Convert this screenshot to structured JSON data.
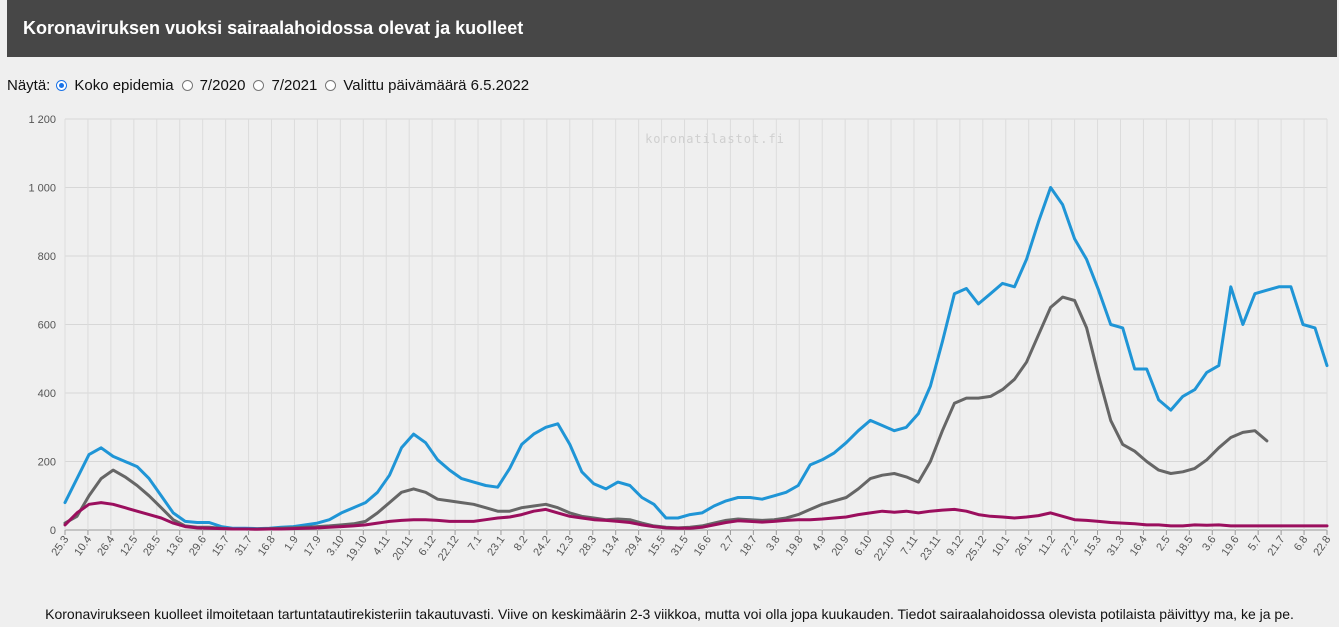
{
  "header": {
    "title": "Koronaviruksen vuoksi sairaalahoidossa olevat ja kuolleet"
  },
  "controls": {
    "label": "Näytä:",
    "options": [
      {
        "label": "Koko epidemia",
        "selected": true
      },
      {
        "label": "7/2020",
        "selected": false
      },
      {
        "label": "7/2021",
        "selected": false
      },
      {
        "label": "Valittu päivämäärä 6.5.2022",
        "selected": false
      }
    ]
  },
  "watermark": "koronatilastot.fi",
  "footer": {
    "note": "Koronavirukseen kuolleet ilmoitetaan tartuntatautirekisteriin takautuvasti. Viive on keskimäärin 2-3 viikkoa, mutta voi olla jopa kuukauden. Tiedot sairaalahoidossa olevista potilaista päivittyy ma, ke ja pe."
  },
  "chart_data": {
    "type": "line",
    "ylim": [
      0,
      1200
    ],
    "yticks": [
      0,
      200,
      400,
      600,
      800,
      "1 000",
      "1 200"
    ],
    "x_tick_labels": [
      "25.3",
      "10.4",
      "26.4",
      "12.5",
      "28.5",
      "13.6",
      "29.6",
      "15.7",
      "31.7",
      "16.8",
      "1.9",
      "17.9",
      "3.10",
      "19.10",
      "4.11",
      "20.11",
      "6.12",
      "22.12",
      "7.1",
      "23.1",
      "8.2",
      "24.2",
      "12.3",
      "28.3",
      "13.4",
      "29.4",
      "15.5",
      "31.5",
      "16.6",
      "2.7",
      "18.7",
      "3.8",
      "19.8",
      "4.9",
      "20.9",
      "6.10",
      "22.10",
      "7.11",
      "23.11",
      "9.12",
      "25.12",
      "10.1",
      "26.1",
      "11.2",
      "27.2",
      "15.3",
      "31.3",
      "16.4",
      "2.5",
      "18.5",
      "3.6",
      "19.6",
      "5.7",
      "21.7",
      "6.8",
      "22.8"
    ],
    "grid": true,
    "series": [
      {
        "color": "#1f95d6",
        "points": [
          [
            0,
            80
          ],
          [
            1,
            150
          ],
          [
            2,
            220
          ],
          [
            3,
            240
          ],
          [
            4,
            215
          ],
          [
            5,
            200
          ],
          [
            6,
            185
          ],
          [
            7,
            150
          ],
          [
            8,
            100
          ],
          [
            9,
            50
          ],
          [
            10,
            25
          ],
          [
            11,
            22
          ],
          [
            12,
            22
          ],
          [
            13,
            10
          ],
          [
            14,
            5
          ],
          [
            15,
            5
          ],
          [
            16,
            4
          ],
          [
            17,
            5
          ],
          [
            18,
            8
          ],
          [
            19,
            10
          ],
          [
            20,
            15
          ],
          [
            21,
            20
          ],
          [
            22,
            30
          ],
          [
            23,
            50
          ],
          [
            24,
            65
          ],
          [
            25,
            80
          ],
          [
            26,
            110
          ],
          [
            27,
            160
          ],
          [
            28,
            240
          ],
          [
            29,
            280
          ],
          [
            30,
            255
          ],
          [
            31,
            205
          ],
          [
            32,
            175
          ],
          [
            33,
            150
          ],
          [
            34,
            140
          ],
          [
            35,
            130
          ],
          [
            36,
            125
          ],
          [
            37,
            180
          ],
          [
            38,
            250
          ],
          [
            39,
            280
          ],
          [
            40,
            300
          ],
          [
            41,
            310
          ],
          [
            42,
            250
          ],
          [
            43,
            170
          ],
          [
            44,
            135
          ],
          [
            45,
            120
          ],
          [
            46,
            140
          ],
          [
            47,
            130
          ],
          [
            48,
            95
          ],
          [
            49,
            75
          ],
          [
            50,
            35
          ],
          [
            51,
            35
          ],
          [
            52,
            45
          ],
          [
            53,
            50
          ],
          [
            54,
            70
          ],
          [
            55,
            85
          ],
          [
            56,
            95
          ],
          [
            57,
            95
          ],
          [
            58,
            90
          ],
          [
            59,
            100
          ],
          [
            60,
            110
          ],
          [
            61,
            130
          ],
          [
            62,
            190
          ],
          [
            63,
            205
          ],
          [
            64,
            225
          ],
          [
            65,
            255
          ],
          [
            66,
            290
          ],
          [
            67,
            320
          ],
          [
            68,
            305
          ],
          [
            69,
            290
          ],
          [
            70,
            300
          ],
          [
            71,
            340
          ],
          [
            72,
            420
          ],
          [
            73,
            550
          ],
          [
            74,
            690
          ],
          [
            75,
            705
          ],
          [
            76,
            660
          ],
          [
            77,
            690
          ],
          [
            78,
            720
          ],
          [
            79,
            710
          ],
          [
            80,
            790
          ],
          [
            81,
            900
          ],
          [
            82,
            1000
          ],
          [
            83,
            950
          ],
          [
            84,
            850
          ],
          [
            85,
            790
          ],
          [
            86,
            700
          ],
          [
            87,
            600
          ],
          [
            88,
            590
          ],
          [
            89,
            470
          ],
          [
            90,
            470
          ],
          [
            91,
            380
          ],
          [
            92,
            350
          ],
          [
            93,
            390
          ],
          [
            94,
            410
          ],
          [
            95,
            460
          ],
          [
            96,
            480
          ],
          [
            97,
            710
          ],
          [
            98,
            600
          ],
          [
            99,
            690
          ],
          [
            100,
            700
          ],
          [
            101,
            710
          ],
          [
            102,
            710
          ],
          [
            103,
            600
          ],
          [
            104,
            590
          ],
          [
            105,
            480
          ]
        ]
      },
      {
        "color": "#666666",
        "points": [
          [
            0,
            20
          ],
          [
            1,
            40
          ],
          [
            2,
            100
          ],
          [
            3,
            150
          ],
          [
            4,
            175
          ],
          [
            5,
            155
          ],
          [
            6,
            130
          ],
          [
            7,
            100
          ],
          [
            8,
            65
          ],
          [
            9,
            30
          ],
          [
            10,
            12
          ],
          [
            11,
            8
          ],
          [
            12,
            8
          ],
          [
            13,
            5
          ],
          [
            14,
            3
          ],
          [
            15,
            3
          ],
          [
            16,
            3
          ],
          [
            17,
            4
          ],
          [
            18,
            5
          ],
          [
            19,
            6
          ],
          [
            20,
            8
          ],
          [
            21,
            10
          ],
          [
            22,
            12
          ],
          [
            23,
            15
          ],
          [
            24,
            18
          ],
          [
            25,
            25
          ],
          [
            26,
            50
          ],
          [
            27,
            80
          ],
          [
            28,
            110
          ],
          [
            29,
            120
          ],
          [
            30,
            110
          ],
          [
            31,
            90
          ],
          [
            32,
            85
          ],
          [
            33,
            80
          ],
          [
            34,
            75
          ],
          [
            35,
            65
          ],
          [
            36,
            55
          ],
          [
            37,
            55
          ],
          [
            38,
            65
          ],
          [
            39,
            70
          ],
          [
            40,
            75
          ],
          [
            41,
            65
          ],
          [
            42,
            50
          ],
          [
            43,
            40
          ],
          [
            44,
            35
          ],
          [
            45,
            30
          ],
          [
            46,
            32
          ],
          [
            47,
            30
          ],
          [
            48,
            20
          ],
          [
            49,
            12
          ],
          [
            50,
            8
          ],
          [
            51,
            6
          ],
          [
            52,
            8
          ],
          [
            53,
            12
          ],
          [
            54,
            20
          ],
          [
            55,
            28
          ],
          [
            56,
            32
          ],
          [
            57,
            30
          ],
          [
            58,
            28
          ],
          [
            59,
            30
          ],
          [
            60,
            35
          ],
          [
            61,
            45
          ],
          [
            62,
            60
          ],
          [
            63,
            75
          ],
          [
            64,
            85
          ],
          [
            65,
            95
          ],
          [
            66,
            120
          ],
          [
            67,
            150
          ],
          [
            68,
            160
          ],
          [
            69,
            165
          ],
          [
            70,
            155
          ],
          [
            71,
            140
          ],
          [
            72,
            200
          ],
          [
            73,
            290
          ],
          [
            74,
            370
          ],
          [
            75,
            385
          ],
          [
            76,
            385
          ],
          [
            77,
            390
          ],
          [
            78,
            410
          ],
          [
            79,
            440
          ],
          [
            80,
            490
          ],
          [
            81,
            570
          ],
          [
            82,
            650
          ],
          [
            83,
            680
          ],
          [
            84,
            670
          ],
          [
            85,
            590
          ],
          [
            86,
            450
          ],
          [
            87,
            320
          ],
          [
            88,
            250
          ],
          [
            89,
            230
          ],
          [
            90,
            200
          ],
          [
            91,
            175
          ],
          [
            92,
            165
          ],
          [
            93,
            170
          ],
          [
            94,
            180
          ],
          [
            95,
            205
          ],
          [
            96,
            240
          ],
          [
            97,
            270
          ],
          [
            98,
            285
          ],
          [
            99,
            290
          ],
          [
            100,
            260
          ]
        ]
      },
      {
        "color": "#9b0f5e",
        "points": [
          [
            0,
            15
          ],
          [
            1,
            50
          ],
          [
            2,
            75
          ],
          [
            3,
            80
          ],
          [
            4,
            75
          ],
          [
            5,
            65
          ],
          [
            6,
            55
          ],
          [
            7,
            45
          ],
          [
            8,
            35
          ],
          [
            9,
            20
          ],
          [
            10,
            10
          ],
          [
            11,
            6
          ],
          [
            12,
            5
          ],
          [
            13,
            4
          ],
          [
            14,
            3
          ],
          [
            15,
            3
          ],
          [
            16,
            2
          ],
          [
            17,
            3
          ],
          [
            18,
            3
          ],
          [
            19,
            4
          ],
          [
            20,
            5
          ],
          [
            21,
            6
          ],
          [
            22,
            8
          ],
          [
            23,
            10
          ],
          [
            24,
            12
          ],
          [
            25,
            15
          ],
          [
            26,
            20
          ],
          [
            27,
            25
          ],
          [
            28,
            28
          ],
          [
            29,
            30
          ],
          [
            30,
            30
          ],
          [
            31,
            28
          ],
          [
            32,
            25
          ],
          [
            33,
            25
          ],
          [
            34,
            25
          ],
          [
            35,
            30
          ],
          [
            36,
            35
          ],
          [
            37,
            38
          ],
          [
            38,
            45
          ],
          [
            39,
            55
          ],
          [
            40,
            60
          ],
          [
            41,
            50
          ],
          [
            42,
            40
          ],
          [
            43,
            35
          ],
          [
            44,
            30
          ],
          [
            45,
            28
          ],
          [
            46,
            25
          ],
          [
            47,
            22
          ],
          [
            48,
            15
          ],
          [
            49,
            10
          ],
          [
            50,
            6
          ],
          [
            51,
            5
          ],
          [
            52,
            5
          ],
          [
            53,
            8
          ],
          [
            54,
            15
          ],
          [
            55,
            22
          ],
          [
            56,
            27
          ],
          [
            57,
            25
          ],
          [
            58,
            23
          ],
          [
            59,
            25
          ],
          [
            60,
            28
          ],
          [
            61,
            30
          ],
          [
            62,
            30
          ],
          [
            63,
            32
          ],
          [
            64,
            35
          ],
          [
            65,
            38
          ],
          [
            66,
            45
          ],
          [
            67,
            50
          ],
          [
            68,
            55
          ],
          [
            69,
            52
          ],
          [
            70,
            55
          ],
          [
            71,
            50
          ],
          [
            72,
            55
          ],
          [
            73,
            58
          ],
          [
            74,
            60
          ],
          [
            75,
            55
          ],
          [
            76,
            45
          ],
          [
            77,
            40
          ],
          [
            78,
            38
          ],
          [
            79,
            35
          ],
          [
            80,
            38
          ],
          [
            81,
            42
          ],
          [
            82,
            50
          ],
          [
            83,
            40
          ],
          [
            84,
            30
          ],
          [
            85,
            28
          ],
          [
            86,
            25
          ],
          [
            87,
            22
          ],
          [
            88,
            20
          ],
          [
            89,
            18
          ],
          [
            90,
            15
          ],
          [
            91,
            15
          ],
          [
            92,
            12
          ],
          [
            93,
            12
          ],
          [
            94,
            15
          ],
          [
            95,
            14
          ],
          [
            96,
            15
          ],
          [
            97,
            12
          ],
          [
            98,
            12
          ],
          [
            99,
            12
          ],
          [
            100,
            12
          ],
          [
            101,
            12
          ],
          [
            102,
            12
          ],
          [
            103,
            12
          ],
          [
            104,
            12
          ],
          [
            105,
            12
          ]
        ]
      }
    ]
  }
}
